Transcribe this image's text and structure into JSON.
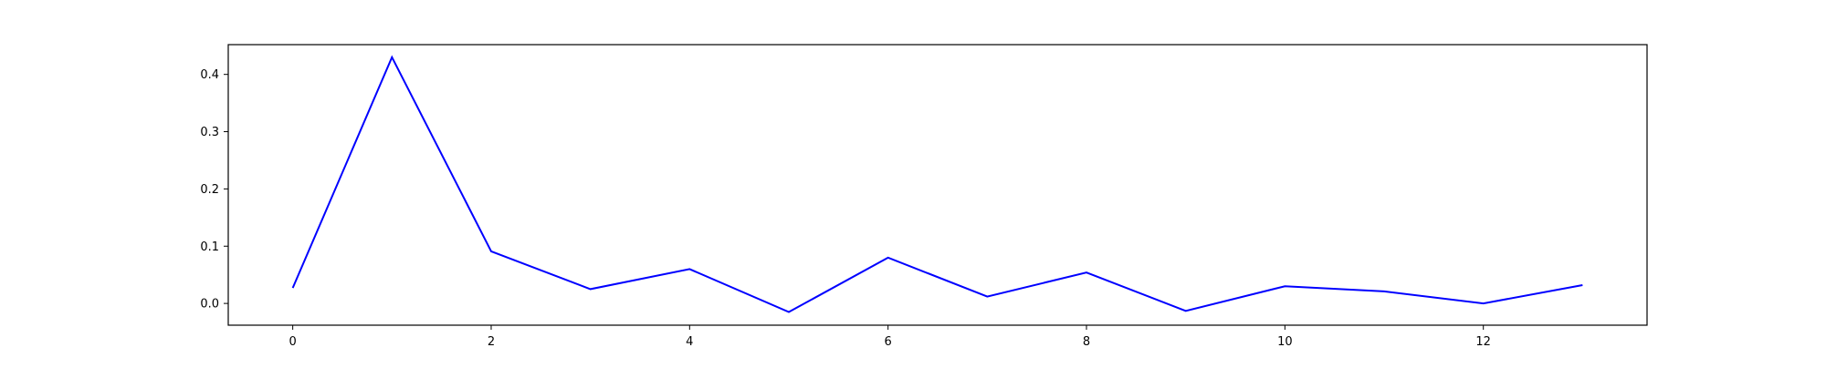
{
  "chart_data": {
    "type": "line",
    "title": "",
    "xlabel": "",
    "ylabel": "",
    "x": [
      0,
      1,
      2,
      3,
      4,
      5,
      6,
      7,
      8,
      9,
      10,
      11,
      12,
      13
    ],
    "series": [
      {
        "values": [
          0.027,
          0.43,
          0.091,
          0.025,
          0.06,
          -0.015,
          0.08,
          0.012,
          0.054,
          -0.013,
          0.03,
          0.021,
          0.0,
          0.032
        ],
        "color": "#0000ff"
      }
    ],
    "xlim": [
      -0.65,
      13.65
    ],
    "ylim": [
      -0.038,
      0.452
    ],
    "xticks": [
      0,
      2,
      4,
      6,
      8,
      10,
      12
    ],
    "xtick_labels": [
      "0",
      "2",
      "4",
      "6",
      "8",
      "10",
      "12"
    ],
    "yticks": [
      0.0,
      0.1,
      0.2,
      0.3,
      0.4
    ],
    "ytick_labels": [
      "0.0",
      "0.1",
      "0.2",
      "0.3",
      "0.4"
    ],
    "grid": false,
    "legend": "none"
  }
}
